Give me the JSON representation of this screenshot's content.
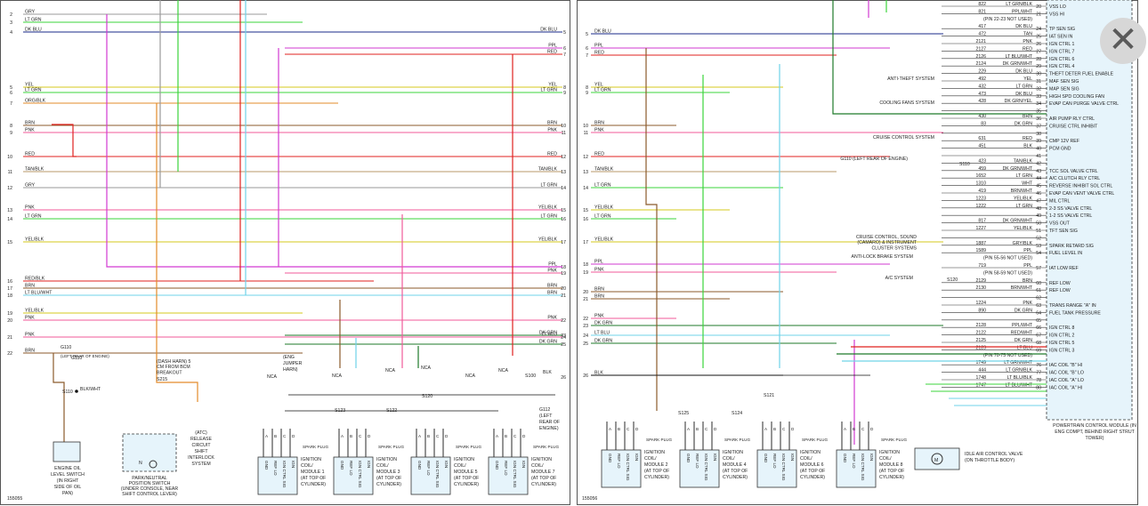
{
  "close_icon": "close-icon",
  "left_panel": {
    "drawing_no": "155055",
    "wires": [
      {
        "pin": "2",
        "label": "GRY",
        "color": "#9a9a9a"
      },
      {
        "pin": "3",
        "label": "LT GRN",
        "color": "#3bd43b"
      },
      {
        "pin": "4",
        "label": "DK BLU",
        "right_label": "DK BLU",
        "right_pin": "5",
        "color": "#1a2a8a"
      },
      {
        "pin": "",
        "label": "",
        "right_label": "PPL",
        "right_pin": "6",
        "color": "#d23ad2"
      },
      {
        "pin": "",
        "label": "",
        "right_label": "RED",
        "right_pin": "7",
        "color": "#e0211f"
      },
      {
        "pin": "5",
        "label": "YEL",
        "right_label": "YEL",
        "right_pin": "8",
        "color": "#d6c81c"
      },
      {
        "pin": "6",
        "label": "LT GRN",
        "right_label": "LT GRN",
        "right_pin": "9",
        "color": "#3bd43b"
      },
      {
        "pin": "7",
        "label": "ORG/BLK",
        "color": "#e38b2a"
      },
      {
        "pin": "8",
        "label": "BRN",
        "right_label": "BRN",
        "right_pin": "10",
        "color": "#8b5a2b"
      },
      {
        "pin": "9",
        "label": "PNK",
        "right_label": "PNK",
        "right_pin": "11",
        "color": "#f05a9a"
      },
      {
        "pin": "10",
        "label": "RED",
        "right_label": "RED",
        "right_pin": "12",
        "color": "#e0211f"
      },
      {
        "pin": "11",
        "label": "TAN/BLK",
        "right_label": "TAN/BLK",
        "right_pin": "13",
        "color": "#b89a6a"
      },
      {
        "pin": "12",
        "label": "GRY",
        "right_label": "LT GRN",
        "right_pin": "14",
        "color": "#9a9a9a"
      },
      {
        "pin": "13",
        "label": "PNK",
        "right_label": "YEL/BLK",
        "right_pin": "15",
        "color": "#f05a9a"
      },
      {
        "pin": "14",
        "label": "LT GRN",
        "right_label": "LT GRN",
        "right_pin": "16",
        "color": "#3bd43b"
      },
      {
        "pin": "15",
        "label": "YEL/BLK",
        "right_label": "YEL/BLK",
        "right_pin": "17",
        "color": "#d6c81c"
      },
      {
        "pin": "",
        "label": "",
        "right_label": "PPL",
        "right_pin": "18",
        "color": "#d23ad2"
      },
      {
        "pin": "",
        "label": "",
        "right_label": "PNK",
        "right_pin": "19",
        "color": "#f05a9a"
      },
      {
        "pin": "16",
        "label": "RED/BLK",
        "color": "#e0211f"
      },
      {
        "pin": "17",
        "label": "BRN",
        "right_label": "BRN",
        "right_pin": "20",
        "color": "#8b5a2b"
      },
      {
        "pin": "18",
        "label": "LT BLU/WHT",
        "right_label": "BRN",
        "right_pin": "21",
        "color": "#6fd3e8"
      },
      {
        "pin": "19",
        "label": "YEL/BLK",
        "color": "#d6c81c"
      },
      {
        "pin": "20",
        "label": "PNK",
        "right_label": "PNK",
        "right_pin": "22",
        "color": "#f05a9a"
      },
      {
        "pin": "",
        "label": "",
        "right_label": "DK GRN",
        "right_pin": "23",
        "color": "#1e7a2a"
      },
      {
        "pin": "21",
        "label": "PNK",
        "right_label": "LT BLU",
        "right_pin": "24",
        "color": "#f05a9a"
      },
      {
        "pin": "",
        "label": "",
        "right_label": "DK GRN",
        "right_pin": "25",
        "color": "#1e7a2a"
      },
      {
        "pin": "22",
        "label": "BRN",
        "color": "#8b5a2b"
      }
    ],
    "oil_switch": {
      "label": "ENGINE OIL LEVEL SWITCH (IN RIGHT SIDE OF OIL PAN)",
      "ground": "G110",
      "splice": "S110",
      "wire": "BLK/WHT",
      "loc": "(LEFT REAR OF ENGINE)"
    },
    "park_neutral": {
      "label": "PARK/NEUTRAL POSITION SWITCH (UNDER CONSOLE, NEAR SHIFT CONTROL LEVER)"
    },
    "atc": {
      "label": "(ATC) RELEASE CIRCUIT SHIFT INTERLOCK SYSTEM",
      "note": "(DASH HARN) 5 CM FROM BCM BREAKOUT",
      "splice": "S215"
    },
    "jumper": "(ENG JUMPER HARN)",
    "splices": [
      "S123",
      "S122",
      "S120"
    ],
    "nca": "NCA",
    "ground": {
      "id": "G112",
      "desc": "(LEFT REAR OF ENGINE)",
      "splice": "S100",
      "wire": "BLK",
      "pin": "26"
    },
    "coils": [
      {
        "label": "IGNITION COIL/ MODULE 1 (AT TOP OF CYLINDER)"
      },
      {
        "label": "IGNITION COIL/ MODULE 3 (AT TOP OF CYLINDER)"
      },
      {
        "label": "IGNITION COIL/ MODULE 5 (AT TOP OF CYLINDER)"
      },
      {
        "label": "IGNITION COIL/ MODULE 7 (AT TOP OF CYLINDER)"
      }
    ],
    "pin_names": [
      "GND",
      "REF LO",
      "IGN CTRL SIG",
      "IGN"
    ],
    "spark": "SPARK PLUG"
  },
  "right_panel": {
    "drawing_no": "155056",
    "pcm_label": "POWERTRAIN CONTROL MODULE (IN ENG COMPT, BEHIND RIGHT STRUT TOWER)",
    "pcm_pins": [
      {
        "pin": "20",
        "circuit": "822",
        "wire": "LT GRN/BLK",
        "name": "VSS LO"
      },
      {
        "pin": "21",
        "circuit": "821",
        "wire": "PPL/WHT",
        "name": "VSS HI"
      },
      {
        "pin": "",
        "circuit": "",
        "wire": "(PIN 22-23 NOT USED)",
        "name": ""
      },
      {
        "pin": "24",
        "circuit": "417",
        "wire": "DK BLU",
        "name": "TP SEN SIG"
      },
      {
        "pin": "25",
        "circuit": "472",
        "wire": "TAN",
        "name": "IAT SEN IN"
      },
      {
        "pin": "26",
        "circuit": "2121",
        "wire": "PNK",
        "name": "IGN CTRL 1"
      },
      {
        "pin": "27",
        "circuit": "2127",
        "wire": "RED",
        "name": "IGN CTRL 7"
      },
      {
        "pin": "28",
        "circuit": "2126",
        "wire": "LT BLU/WHT",
        "name": "IGN CTRL 6"
      },
      {
        "pin": "29",
        "circuit": "2124",
        "wire": "DK GRN/WHT",
        "name": "IGN CTRL 4"
      },
      {
        "pin": "30",
        "circuit": "229",
        "wire": "DK BLU",
        "name": "THEFT DETER FUEL ENABLE"
      },
      {
        "pin": "31",
        "circuit": "492",
        "wire": "YEL",
        "name": "MAF SEN SIG"
      },
      {
        "pin": "32",
        "circuit": "432",
        "wire": "LT GRN",
        "name": "MAP SEN SIG"
      },
      {
        "pin": "33",
        "circuit": "473",
        "wire": "DK BLU",
        "name": "HIGH SPD COOLING FAN"
      },
      {
        "pin": "34",
        "circuit": "428",
        "wire": "DK GRN/YEL",
        "name": "EVAP CAN PURGE VALVE CTRL"
      },
      {
        "pin": "35",
        "circuit": "",
        "wire": "",
        "name": ""
      },
      {
        "pin": "36",
        "circuit": "430",
        "wire": "BRN",
        "name": "AIR PUMP RLY CTRL"
      },
      {
        "pin": "37",
        "circuit": "83",
        "wire": "DK GRN",
        "name": "CRUISE CTRL INHIBIT"
      },
      {
        "pin": "38",
        "circuit": "",
        "wire": "",
        "name": ""
      },
      {
        "pin": "39",
        "circuit": "631",
        "wire": "RED",
        "name": "CMP 12V REF"
      },
      {
        "pin": "40",
        "circuit": "451",
        "wire": "BLK",
        "name": "PCM GND"
      },
      {
        "pin": "41",
        "circuit": "",
        "wire": "",
        "name": ""
      },
      {
        "pin": "42",
        "circuit": "423",
        "wire": "TAN/BLK",
        "name": ""
      },
      {
        "pin": "43",
        "circuit": "459",
        "wire": "DK GRN/WHT",
        "name": "TCC SOL VALVE CTRL"
      },
      {
        "pin": "44",
        "circuit": "1652",
        "wire": "LT GRN",
        "name": "A/C CLUTCH RLY CTRL"
      },
      {
        "pin": "45",
        "circuit": "1310",
        "wire": "WHT",
        "name": "REVERSE INHIBIT SOL CTRL"
      },
      {
        "pin": "46",
        "circuit": "419",
        "wire": "BRN/WHT",
        "name": "EVAP CAN VENT VALVE CTRL"
      },
      {
        "pin": "47",
        "circuit": "1223",
        "wire": "YEL/BLK",
        "name": "MIL CTRL"
      },
      {
        "pin": "48",
        "circuit": "1222",
        "wire": "LT GRN",
        "name": "2-3 SS VALVE CTRL"
      },
      {
        "pin": "49",
        "circuit": "",
        "wire": "",
        "name": "1-2 SS VALVE CTRL"
      },
      {
        "pin": "50",
        "circuit": "817",
        "wire": "DK GRN/WHT",
        "name": "VSS OUT"
      },
      {
        "pin": "51",
        "circuit": "1227",
        "wire": "YEL/BLK",
        "name": "TFT SEN SIG"
      },
      {
        "pin": "52",
        "circuit": "",
        "wire": "",
        "name": ""
      },
      {
        "pin": "53",
        "circuit": "1887",
        "wire": "GRY/BLK",
        "name": "SPARK RETARD SIG"
      },
      {
        "pin": "54",
        "circuit": "1589",
        "wire": "PPL",
        "name": "FUEL LEVEL IN"
      },
      {
        "pin": "",
        "circuit": "",
        "wire": "(PIN 55-56 NOT USED)",
        "name": ""
      },
      {
        "pin": "57",
        "circuit": "719",
        "wire": "PPL",
        "name": "IAT LOW REF"
      },
      {
        "pin": "",
        "circuit": "",
        "wire": "(PIN 58-59 NOT USED)",
        "name": ""
      },
      {
        "pin": "60",
        "circuit": "2129",
        "wire": "BRN",
        "name": "REF LOW"
      },
      {
        "pin": "61",
        "circuit": "2130",
        "wire": "BRN/WHT",
        "name": "REF LOW"
      },
      {
        "pin": "62",
        "circuit": "",
        "wire": "",
        "name": ""
      },
      {
        "pin": "63",
        "circuit": "1224",
        "wire": "PNK",
        "name": "TRANS RANGE \"A\" IN"
      },
      {
        "pin": "64",
        "circuit": "890",
        "wire": "DK GRN",
        "name": "FUEL TANK PRESSURE"
      },
      {
        "pin": "65",
        "circuit": "",
        "wire": "",
        "name": ""
      },
      {
        "pin": "66",
        "circuit": "2128",
        "wire": "PPL/WHT",
        "name": "IGN CTRL 8"
      },
      {
        "pin": "67",
        "circuit": "2122",
        "wire": "RED/WHT",
        "name": "IGN CTRL 2"
      },
      {
        "pin": "68",
        "circuit": "2125",
        "wire": "DK GRN",
        "name": "IGN CTRL 5"
      },
      {
        "pin": "69",
        "circuit": "2123",
        "wire": "LT BLU",
        "name": "IGN CTRL 3"
      },
      {
        "pin": "",
        "circuit": "",
        "wire": "(PIN 70-75 NOT USED)",
        "name": ""
      },
      {
        "pin": "76",
        "circuit": "1749",
        "wire": "LT GRN/WHT",
        "name": "IAC COIL \"B\" HI"
      },
      {
        "pin": "77",
        "circuit": "444",
        "wire": "LT GRN/BLK",
        "name": "IAC COIL \"B\" LO"
      },
      {
        "pin": "78",
        "circuit": "1748",
        "wire": "LT BLU/BLK",
        "name": "IAC COIL \"A\" LO"
      },
      {
        "pin": "80",
        "circuit": "1747",
        "wire": "LT BLU/WHT",
        "name": "IAC COIL \"A\" HI"
      }
    ],
    "systems": [
      {
        "label": "ANTI-THEFT SYSTEM"
      },
      {
        "label": "COOLING FANS SYSTEM"
      },
      {
        "label": "CRUISE CONTROL SYSTEM"
      },
      {
        "label": "G110 (LEFT REAR OF ENGINE)"
      },
      {
        "label": "CRUISE CONTROL, SOUND (CAMARO) & INSTRUMENT CLUSTER SYSTEMS"
      },
      {
        "label": "ANTI-LOCK BRAKE SYSTEM"
      },
      {
        "label": "A/C SYSTEM"
      }
    ],
    "left_wires": [
      {
        "pin": "5",
        "label": "DK BLU",
        "color": "#1a2a8a"
      },
      {
        "pin": "6",
        "label": "PPL",
        "color": "#d23ad2"
      },
      {
        "pin": "7",
        "label": "RED",
        "color": "#e0211f"
      },
      {
        "pin": "8",
        "label": "YEL",
        "color": "#d6c81c"
      },
      {
        "pin": "9",
        "label": "LT GRN",
        "color": "#3bd43b"
      },
      {
        "pin": "10",
        "label": "BRN",
        "color": "#8b5a2b"
      },
      {
        "pin": "11",
        "label": "PNK",
        "color": "#f05a9a"
      },
      {
        "pin": "12",
        "label": "RED",
        "color": "#e0211f"
      },
      {
        "pin": "13",
        "label": "TAN/BLK",
        "color": "#b89a6a"
      },
      {
        "pin": "14",
        "label": "LT GRN",
        "color": "#3bd43b"
      },
      {
        "pin": "15",
        "label": "YEL/BLK",
        "color": "#d6c81c"
      },
      {
        "pin": "16",
        "label": "LT GRN",
        "color": "#3bd43b"
      },
      {
        "pin": "17",
        "label": "YEL/BLK",
        "color": "#d6c81c"
      },
      {
        "pin": "18",
        "label": "PPL",
        "color": "#d23ad2"
      },
      {
        "pin": "19",
        "label": "PNK",
        "color": "#f05a9a"
      },
      {
        "pin": "20",
        "label": "BRN",
        "color": "#8b5a2b"
      },
      {
        "pin": "21",
        "label": "BRN",
        "color": "#8b5a2b"
      },
      {
        "pin": "22",
        "label": "PNK",
        "color": "#f05a9a"
      },
      {
        "pin": "23",
        "label": "DK GRN",
        "color": "#1e7a2a"
      },
      {
        "pin": "24",
        "label": "LT BLU",
        "color": "#6fd3e8"
      },
      {
        "pin": "25",
        "label": "DK GRN",
        "color": "#1e7a2a"
      },
      {
        "pin": "26",
        "label": "BLK",
        "color": "#111111"
      }
    ],
    "splices": [
      "S125",
      "S124",
      "S121",
      "S120",
      "S110"
    ],
    "coils": [
      {
        "label": "IGNITION COIL/ MODULE 2 (AT TOP OF CYLINDER)"
      },
      {
        "label": "IGNITION COIL/ MODULE 4 (AT TOP OF CYLINDER)"
      },
      {
        "label": "IGNITION COIL/ MODULE 6 (AT TOP OF CYLINDER)"
      },
      {
        "label": "IGNITION COIL/ MODULE 8 (AT TOP OF CYLINDER)"
      }
    ],
    "iac": {
      "label": "IDLE AIR CONTROL VALVE (ON THROTTLE BODY)"
    }
  }
}
